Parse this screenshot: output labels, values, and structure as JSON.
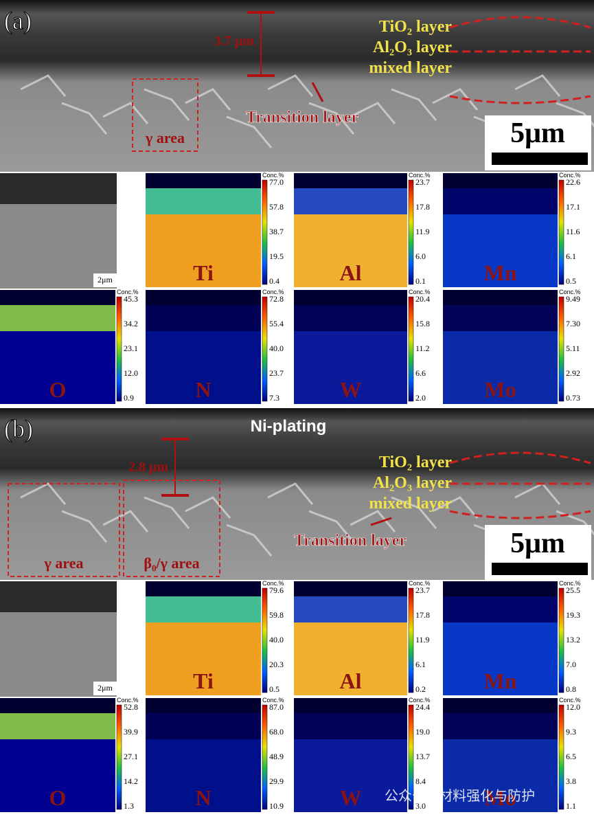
{
  "panels": [
    {
      "label": "(a)",
      "thickness": "3.7 μm",
      "layers": [
        "TiO₂ layer",
        "Al₂O₃ layer",
        "mixed layer"
      ],
      "transition": "Transition layer",
      "areas": [
        "γ area"
      ],
      "scale": "5μm",
      "small_scale": "2μm",
      "maps": [
        {
          "element": "Ti",
          "unit": "Conc.%",
          "ticks": [
            "77.0",
            "57.8",
            "38.7",
            "19.5",
            "0.4"
          ]
        },
        {
          "element": "Al",
          "unit": "Conc.%",
          "ticks": [
            "23.7",
            "17.8",
            "11.9",
            "6.0",
            "0.1"
          ]
        },
        {
          "element": "Mn",
          "unit": "Conc.%",
          "ticks": [
            "22.6",
            "17.1",
            "11.6",
            "6.1",
            "0.5"
          ]
        },
        {
          "element": "O",
          "unit": "Conc.%",
          "ticks": [
            "45.3",
            "34.2",
            "23.1",
            "12.0",
            "0.9"
          ]
        },
        {
          "element": "N",
          "unit": "Conc.%",
          "ticks": [
            "72.8",
            "55.4",
            "40.0",
            "23.7",
            "7.3"
          ]
        },
        {
          "element": "W",
          "unit": "Conc.%",
          "ticks": [
            "20.4",
            "15.8",
            "11.2",
            "6.6",
            "2.0"
          ]
        },
        {
          "element": "Mo",
          "unit": "Conc.%",
          "ticks": [
            "9.49",
            "7.30",
            "5.11",
            "2.92",
            "0.73"
          ]
        }
      ]
    },
    {
      "label": "(b)",
      "top_label": "Ni-plating",
      "thickness": "2.8 μm",
      "layers": [
        "TiO₂ layer",
        "Al₂O₃ layer",
        "mixed layer"
      ],
      "transition": "Transition layer",
      "areas": [
        "γ area",
        "β₀/γ area"
      ],
      "scale": "5μm",
      "small_scale": "2μm",
      "maps": [
        {
          "element": "Ti",
          "unit": "Conc.%",
          "ticks": [
            "79.6",
            "59.8",
            "40.0",
            "20.3",
            "0.5"
          ]
        },
        {
          "element": "Al",
          "unit": "Conc.%",
          "ticks": [
            "23.7",
            "17.8",
            "11.9",
            "6.1",
            "0.2"
          ]
        },
        {
          "element": "Mn",
          "unit": "Conc.%",
          "ticks": [
            "25.5",
            "19.3",
            "13.2",
            "7.0",
            "0.8"
          ]
        },
        {
          "element": "O",
          "unit": "Conc.%",
          "ticks": [
            "52.8",
            "39.9",
            "27.1",
            "14.2",
            "1.3"
          ]
        },
        {
          "element": "N",
          "unit": "Conc.%",
          "ticks": [
            "87.0",
            "68.0",
            "48.9",
            "29.9",
            "10.9"
          ]
        },
        {
          "element": "W",
          "unit": "Conc.%",
          "ticks": [
            "24.4",
            "19.0",
            "13.7",
            "8.4",
            "3.0"
          ]
        },
        {
          "element": "Mo",
          "unit": "Conc.%",
          "ticks": [
            "12.0",
            "9.3",
            "6.5",
            "3.8",
            "1.1"
          ]
        }
      ]
    }
  ],
  "watermark": "公众号 · 材料强化与防护"
}
